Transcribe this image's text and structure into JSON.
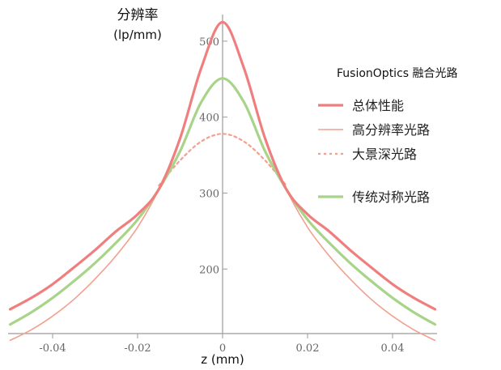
{
  "chart_data": {
    "type": "line",
    "ylabel_line1": "分辨率",
    "ylabel_line2": "(lp/mm)",
    "xlabel": "z (mm)",
    "xlim": [
      -0.05,
      0.05
    ],
    "ylim": [
      115,
      535
    ],
    "x_ticks": [
      -0.04,
      -0.02,
      0,
      0.02,
      0.04
    ],
    "x_tick_labels": [
      "-0.04",
      "-0.02",
      "0",
      "0.02",
      "0.04"
    ],
    "y_ticks": [
      200,
      300,
      400,
      500
    ],
    "y_tick_labels": [
      "200",
      "300",
      "400",
      "500"
    ],
    "legend_title": "FusionOptics 融合光路",
    "legend_position": "right",
    "series": [
      {
        "name": "总体性能",
        "color": "#ef7f7f",
        "style": "solid-thick",
        "x": [
          -0.05,
          -0.045,
          -0.04,
          -0.035,
          -0.03,
          -0.025,
          -0.02,
          -0.015,
          -0.01,
          -0.005,
          0,
          0.005,
          0.01,
          0.015,
          0.02,
          0.025,
          0.03,
          0.035,
          0.04,
          0.045,
          0.05
        ],
        "y": [
          147,
          162,
          180,
          202,
          225,
          250,
          272,
          305,
          372,
          465,
          525,
          465,
          372,
          305,
          272,
          250,
          225,
          202,
          180,
          162,
          147
        ]
      },
      {
        "name": "高分辨率光路",
        "color": "#f2a08f",
        "style": "solid-thin",
        "x": [
          -0.05,
          -0.045,
          -0.04,
          -0.035,
          -0.03,
          -0.025,
          -0.02,
          -0.015,
          -0.01,
          -0.005,
          0,
          0.005,
          0.01,
          0.015,
          0.02,
          0.025,
          0.03,
          0.035,
          0.04,
          0.045,
          0.05
        ],
        "y": [
          106,
          120,
          138,
          160,
          187,
          218,
          255,
          305,
          372,
          465,
          525,
          465,
          372,
          305,
          255,
          218,
          187,
          160,
          138,
          120,
          106
        ]
      },
      {
        "name": "大景深光路",
        "color": "#f2a08f",
        "style": "dotted",
        "x": [
          -0.015,
          -0.01,
          -0.005,
          0,
          0.005,
          0.01,
          0.015
        ],
        "y": [
          310,
          343,
          368,
          378,
          368,
          343,
          310
        ]
      },
      {
        "name": "传统对称光路",
        "color": "#a8d48a",
        "style": "solid-thick",
        "x": [
          -0.05,
          -0.045,
          -0.04,
          -0.035,
          -0.03,
          -0.025,
          -0.02,
          -0.015,
          -0.01,
          -0.005,
          0,
          0.005,
          0.01,
          0.015,
          0.02,
          0.025,
          0.03,
          0.035,
          0.04,
          0.045,
          0.05
        ],
        "y": [
          127,
          143,
          162,
          184,
          208,
          235,
          265,
          305,
          355,
          420,
          451,
          420,
          355,
          305,
          265,
          235,
          208,
          184,
          162,
          143,
          127
        ]
      }
    ]
  }
}
